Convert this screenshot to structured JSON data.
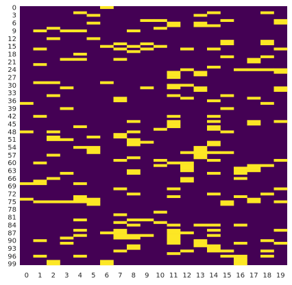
{
  "chart_data": {
    "type": "heatmap",
    "title": "",
    "xlabel": "",
    "ylabel": "",
    "x_categories": [
      "0",
      "1",
      "2",
      "3",
      "4",
      "5",
      "6",
      "7",
      "8",
      "9",
      "10",
      "11",
      "12",
      "13",
      "14",
      "15",
      "16",
      "17",
      "18",
      "19"
    ],
    "y_tick_labels": [
      "0",
      "3",
      "6",
      "9",
      "12",
      "15",
      "18",
      "21",
      "24",
      "27",
      "30",
      "33",
      "36",
      "39",
      "42",
      "45",
      "48",
      "51",
      "54",
      "57",
      "60",
      "63",
      "66",
      "69",
      "72",
      "75",
      "78",
      "81",
      "84",
      "87",
      "90",
      "93",
      "96",
      "99"
    ],
    "n_rows": 100,
    "value_range": [
      0,
      1
    ],
    "colormap": "viridis",
    "color_low": "#440154",
    "color_high": "#fde725",
    "grid": false,
    "colorbar": false,
    "ones": [
      [
        0,
        6
      ],
      [
        2,
        4
      ],
      [
        2,
        14
      ],
      [
        2,
        18
      ],
      [
        3,
        5
      ],
      [
        3,
        13
      ],
      [
        5,
        9
      ],
      [
        5,
        10
      ],
      [
        5,
        15
      ],
      [
        5,
        19
      ],
      [
        6,
        5
      ],
      [
        6,
        11
      ],
      [
        6,
        13
      ],
      [
        6,
        19
      ],
      [
        7,
        11
      ],
      [
        7,
        13
      ],
      [
        7,
        14
      ],
      [
        8,
        2
      ],
      [
        8,
        10
      ],
      [
        9,
        1
      ],
      [
        9,
        3
      ],
      [
        9,
        4
      ],
      [
        9,
        8
      ],
      [
        12,
        2
      ],
      [
        12,
        5
      ],
      [
        13,
        15
      ],
      [
        13,
        18
      ],
      [
        14,
        7
      ],
      [
        14,
        9
      ],
      [
        14,
        15
      ],
      [
        14,
        18
      ],
      [
        15,
        6
      ],
      [
        15,
        8
      ],
      [
        15,
        10
      ],
      [
        16,
        1
      ],
      [
        16,
        7
      ],
      [
        16,
        9
      ],
      [
        16,
        12
      ],
      [
        16,
        14
      ],
      [
        16,
        19
      ],
      [
        17,
        8
      ],
      [
        18,
        4
      ],
      [
        19,
        15
      ],
      [
        19,
        18
      ],
      [
        20,
        3
      ],
      [
        20,
        4
      ],
      [
        20,
        7
      ],
      [
        20,
        17
      ],
      [
        21,
        17
      ],
      [
        22,
        1
      ],
      [
        23,
        14
      ],
      [
        24,
        12
      ],
      [
        24,
        16
      ],
      [
        24,
        17
      ],
      [
        24,
        18
      ],
      [
        24,
        19
      ],
      [
        25,
        11
      ],
      [
        25,
        13
      ],
      [
        25,
        19
      ],
      [
        26,
        11
      ],
      [
        26,
        13
      ],
      [
        27,
        11
      ],
      [
        29,
        1
      ],
      [
        29,
        2
      ],
      [
        29,
        6
      ],
      [
        30,
        11
      ],
      [
        30,
        12
      ],
      [
        31,
        3
      ],
      [
        31,
        9
      ],
      [
        31,
        11
      ],
      [
        31,
        13
      ],
      [
        31,
        19
      ],
      [
        32,
        13
      ],
      [
        32,
        19
      ],
      [
        34,
        2
      ],
      [
        34,
        11
      ],
      [
        34,
        15
      ],
      [
        35,
        7
      ],
      [
        35,
        12
      ],
      [
        35,
        17
      ],
      [
        36,
        7
      ],
      [
        36,
        14
      ],
      [
        37,
        0
      ],
      [
        37,
        18
      ],
      [
        39,
        3
      ],
      [
        39,
        15
      ],
      [
        42,
        1
      ],
      [
        42,
        11
      ],
      [
        42,
        14
      ],
      [
        44,
        8
      ],
      [
        44,
        11
      ],
      [
        44,
        14
      ],
      [
        44,
        17
      ],
      [
        44,
        19
      ],
      [
        45,
        11
      ],
      [
        45,
        17
      ],
      [
        46,
        4
      ],
      [
        46,
        11
      ],
      [
        46,
        14
      ],
      [
        47,
        10
      ],
      [
        47,
        14
      ],
      [
        48,
        0
      ],
      [
        48,
        2
      ],
      [
        48,
        8
      ],
      [
        48,
        15
      ],
      [
        49,
        7
      ],
      [
        50,
        2
      ],
      [
        50,
        5
      ],
      [
        50,
        7
      ],
      [
        51,
        2
      ],
      [
        51,
        3
      ],
      [
        51,
        8
      ],
      [
        52,
        8
      ],
      [
        52,
        9
      ],
      [
        52,
        14
      ],
      [
        53,
        8
      ],
      [
        53,
        14
      ],
      [
        54,
        4
      ],
      [
        54,
        5
      ],
      [
        54,
        13
      ],
      [
        55,
        5
      ],
      [
        55,
        13
      ],
      [
        56,
        5
      ],
      [
        56,
        12
      ],
      [
        56,
        13
      ],
      [
        56,
        14
      ],
      [
        56,
        15
      ],
      [
        57,
        2
      ],
      [
        57,
        13
      ],
      [
        58,
        8
      ],
      [
        58,
        13
      ],
      [
        59,
        7
      ],
      [
        59,
        10
      ],
      [
        59,
        14
      ],
      [
        59,
        19
      ],
      [
        60,
        1
      ],
      [
        60,
        11
      ],
      [
        60,
        12
      ],
      [
        61,
        10
      ],
      [
        61,
        12
      ],
      [
        61,
        17
      ],
      [
        61,
        18
      ],
      [
        62,
        12
      ],
      [
        62,
        16
      ],
      [
        62,
        17
      ],
      [
        63,
        8
      ],
      [
        63,
        12
      ],
      [
        63,
        16
      ],
      [
        63,
        17
      ],
      [
        64,
        3
      ],
      [
        64,
        8
      ],
      [
        64,
        14
      ],
      [
        64,
        16
      ],
      [
        66,
        2
      ],
      [
        66,
        12
      ],
      [
        66,
        16
      ],
      [
        67,
        1
      ],
      [
        67,
        12
      ],
      [
        68,
        0
      ],
      [
        68,
        1
      ],
      [
        68,
        4
      ],
      [
        70,
        7
      ],
      [
        70,
        11
      ],
      [
        70,
        19
      ],
      [
        72,
        8
      ],
      [
        72,
        14
      ],
      [
        72,
        18
      ],
      [
        73,
        4
      ],
      [
        73,
        11
      ],
      [
        73,
        16
      ],
      [
        74,
        0
      ],
      [
        74,
        4
      ],
      [
        74,
        5
      ],
      [
        74,
        17
      ],
      [
        75,
        1
      ],
      [
        75,
        2
      ],
      [
        75,
        3
      ],
      [
        75,
        4
      ],
      [
        75,
        5
      ],
      [
        75,
        15
      ],
      [
        75,
        17
      ],
      [
        75,
        19
      ],
      [
        76,
        5
      ],
      [
        76,
        15
      ],
      [
        79,
        10
      ],
      [
        80,
        7
      ],
      [
        82,
        4
      ],
      [
        82,
        8
      ],
      [
        82,
        9
      ],
      [
        83,
        7
      ],
      [
        83,
        10
      ],
      [
        84,
        8
      ],
      [
        84,
        11
      ],
      [
        84,
        13
      ],
      [
        84,
        14
      ],
      [
        84,
        16
      ],
      [
        86,
        4
      ],
      [
        86,
        7
      ],
      [
        86,
        11
      ],
      [
        86,
        14
      ],
      [
        86,
        19
      ],
      [
        87,
        6
      ],
      [
        87,
        7
      ],
      [
        87,
        11
      ],
      [
        87,
        12
      ],
      [
        88,
        4
      ],
      [
        88,
        7
      ],
      [
        88,
        8
      ],
      [
        88,
        9
      ],
      [
        88,
        11
      ],
      [
        88,
        14
      ],
      [
        89,
        3
      ],
      [
        89,
        7
      ],
      [
        89,
        8
      ],
      [
        89,
        11
      ],
      [
        90,
        1
      ],
      [
        90,
        11
      ],
      [
        90,
        13
      ],
      [
        90,
        18
      ],
      [
        91,
        3
      ],
      [
        91,
        11
      ],
      [
        91,
        13
      ],
      [
        91,
        16
      ],
      [
        91,
        19
      ],
      [
        92,
        8
      ],
      [
        92,
        13
      ],
      [
        92,
        14
      ],
      [
        93,
        8
      ],
      [
        93,
        14
      ],
      [
        94,
        7
      ],
      [
        94,
        12
      ],
      [
        94,
        14
      ],
      [
        94,
        15
      ],
      [
        94,
        18
      ],
      [
        95,
        11
      ],
      [
        96,
        1
      ],
      [
        96,
        4
      ],
      [
        96,
        15
      ],
      [
        96,
        16
      ],
      [
        96,
        18
      ],
      [
        97,
        16
      ],
      [
        98,
        2
      ],
      [
        98,
        6
      ],
      [
        98,
        16
      ],
      [
        99,
        2
      ],
      [
        99,
        6
      ],
      [
        99,
        16
      ]
    ]
  }
}
